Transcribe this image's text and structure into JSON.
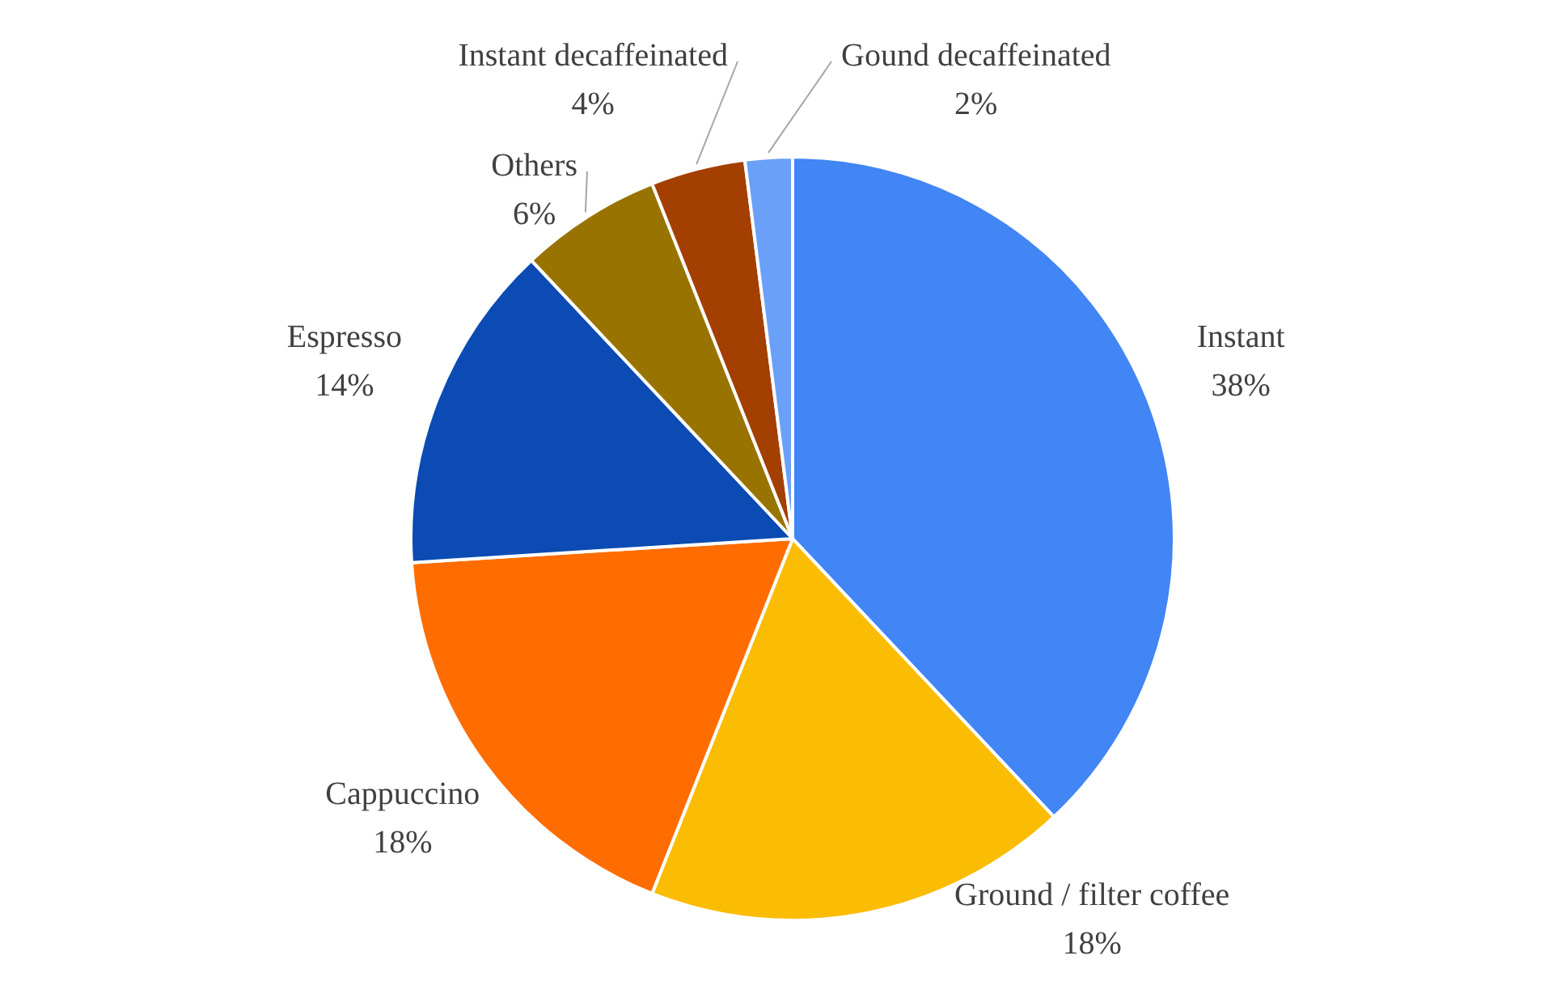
{
  "chart_data": {
    "type": "pie",
    "categories": [
      "Instant",
      "Ground / filter coffee",
      "Cappuccino",
      "Espresso",
      "Others",
      "Instant decaffeinated",
      "Gound decaffeinated"
    ],
    "values": [
      38,
      18,
      18,
      14,
      6,
      4,
      2
    ],
    "value_labels": [
      "38%",
      "18%",
      "18%",
      "14%",
      "6%",
      "4%",
      "2%"
    ],
    "colors": [
      "#4285f4",
      "#fbbc04",
      "#ff6d01",
      "#0b4bb3",
      "#997300",
      "#a33f00",
      "#6aa0f8"
    ],
    "legend": false
  }
}
